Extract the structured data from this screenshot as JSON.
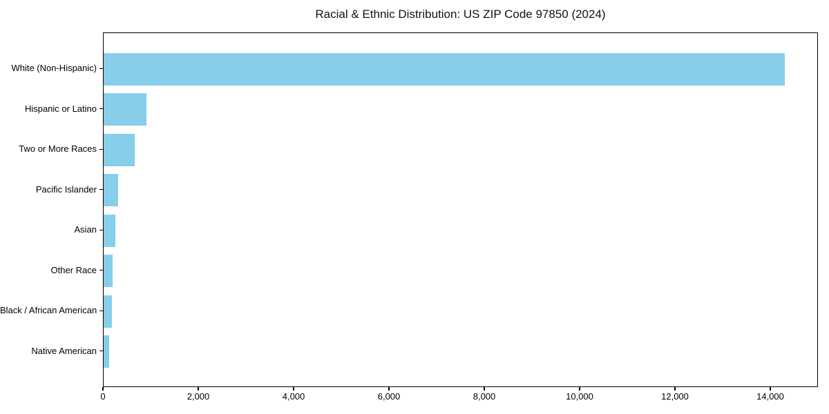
{
  "chart_data": {
    "type": "bar",
    "orientation": "horizontal",
    "title": "Racial & Ethnic Distribution: US ZIP Code 97850 (2024)",
    "categories": [
      "White (Non-Hispanic)",
      "Hispanic or Latino",
      "Two or More Races",
      "Pacific Islander",
      "Asian",
      "Other Race",
      "Black / African American",
      "Native American"
    ],
    "values": [
      14320,
      900,
      650,
      305,
      240,
      185,
      170,
      110
    ],
    "xlabel": "",
    "ylabel": "",
    "xlim": [
      0,
      15000
    ],
    "xticks": [
      0,
      2000,
      4000,
      6000,
      8000,
      10000,
      12000,
      14000
    ],
    "xtick_labels": [
      "0",
      "2,000",
      "4,000",
      "6,000",
      "8,000",
      "10,000",
      "12,000",
      "14,000"
    ],
    "bar_color": "#87CEEB",
    "text_color": "#000000",
    "grid": false,
    "legend": null
  }
}
